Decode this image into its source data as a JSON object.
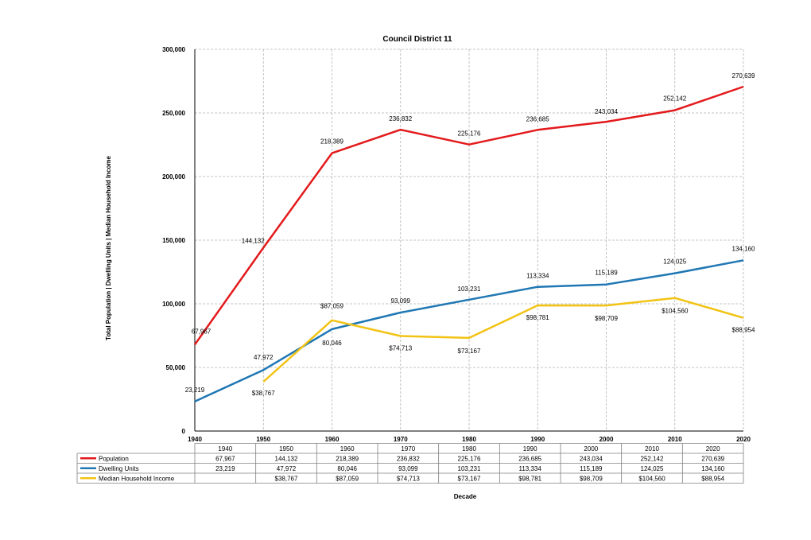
{
  "chart_data": {
    "type": "line",
    "title": "Council District 11",
    "xlabel": "Decade",
    "ylabel": "Total Population | Dwelling Units | Median Household Income",
    "x": [
      1940,
      1950,
      1960,
      1970,
      1980,
      1990,
      2000,
      2010,
      2020
    ],
    "x_tick_labels": [
      "1940",
      "1950",
      "1960",
      "1970",
      "1980",
      "1990",
      "2000",
      "2010",
      "2020"
    ],
    "ylim": [
      0,
      300000
    ],
    "y_ticks": [
      0,
      50000,
      100000,
      150000,
      200000,
      250000,
      300000
    ],
    "y_tick_labels": [
      "0",
      "50,000",
      "100,000",
      "150,000",
      "200,000",
      "250,000",
      "300,000"
    ],
    "grid": true,
    "legend_placement": "data table below chart",
    "series": [
      {
        "name": "Population",
        "color": "#e31a1c",
        "values": [
          67967,
          144132,
          218389,
          236832,
          225176,
          236685,
          243034,
          252142,
          270639
        ],
        "labels": [
          "67,967",
          "144,132",
          "218,389",
          "236,832",
          "225,176",
          "236,685",
          "243,034",
          "252,142",
          "270,639"
        ]
      },
      {
        "name": "Dwelling Units",
        "color": "#1f77b4",
        "values": [
          23219,
          47972,
          80046,
          93099,
          103231,
          113334,
          115189,
          124025,
          134160
        ],
        "labels": [
          "23,219",
          "47,972",
          "80,046",
          "93,099",
          "103,231",
          "113,334",
          "115,189",
          "124,025",
          "134,160"
        ]
      },
      {
        "name": "Median Household Income",
        "color": "#f2c314",
        "values": [
          null,
          38767,
          87059,
          74713,
          73167,
          98781,
          98709,
          104560,
          88954
        ],
        "labels": [
          "",
          "$38,767",
          "$87,059",
          "$74,713",
          "$73,167",
          "$98,781",
          "$98,709",
          "$104,560",
          "$88,954"
        ]
      }
    ]
  }
}
